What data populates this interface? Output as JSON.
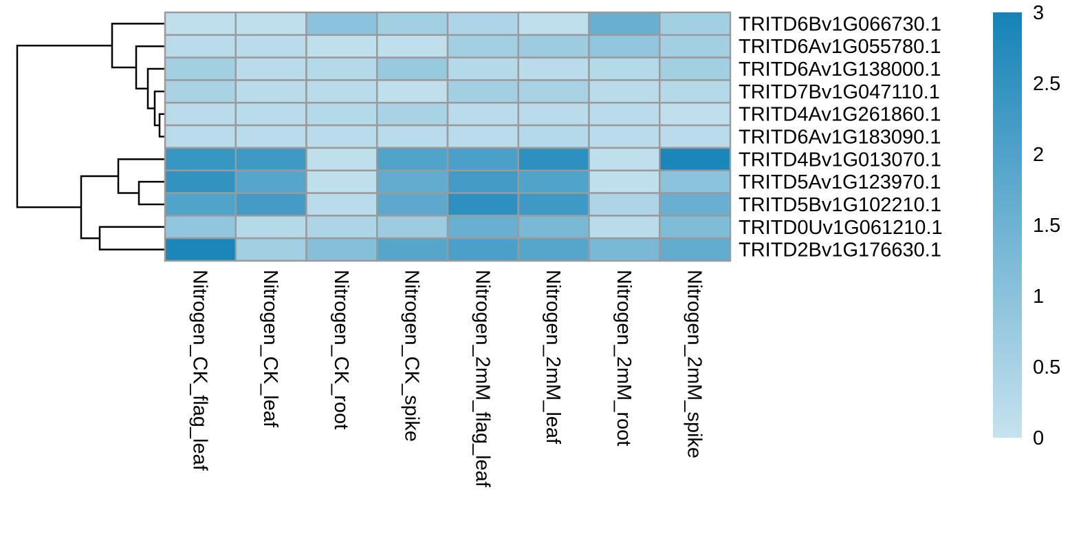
{
  "chart_data": {
    "type": "heatmap",
    "columns": [
      "Nitrogen_CK_flag_leaf",
      "Nitrogen_CK_leaf",
      "Nitrogen_CK_root",
      "Nitrogen_CK_spike",
      "Nitrogen_2mM_flag_leaf",
      "Nitrogen_2mM_leaf",
      "Nitrogen_2mM_root",
      "Nitrogen_2mM_spike"
    ],
    "rows": [
      "TRITD6Bv1G066730.1",
      "TRITD6Av1G055780.1",
      "TRITD6Av1G138000.1",
      "TRITD7Bv1G047110.1",
      "TRITD4Av1G261860.1",
      "TRITD6Av1G183090.1",
      "TRITD4Bv1G013070.1",
      "TRITD5Av1G123970.1",
      "TRITD5Bv1G102210.1",
      "TRITD0Uv1G061210.1",
      "TRITD2Bv1G176630.1"
    ],
    "values": [
      [
        0.1,
        0.1,
        1.0,
        0.6,
        0.4,
        0.1,
        1.6,
        0.6
      ],
      [
        0.2,
        0.2,
        0.1,
        0.1,
        0.6,
        0.7,
        0.9,
        0.6
      ],
      [
        0.6,
        0.2,
        0.3,
        0.8,
        0.3,
        0.2,
        0.3,
        0.6
      ],
      [
        0.5,
        0.2,
        0.2,
        0.1,
        0.6,
        0.5,
        0.2,
        0.3
      ],
      [
        0.2,
        0.2,
        0.3,
        0.5,
        0.2,
        0.2,
        0.2,
        0.1
      ],
      [
        0.2,
        0.2,
        0.2,
        0.2,
        0.2,
        0.3,
        0.2,
        0.2
      ],
      [
        2.4,
        2.3,
        0.1,
        2.0,
        2.1,
        2.6,
        0.1,
        2.9
      ],
      [
        2.5,
        1.9,
        0.1,
        1.7,
        2.2,
        2.0,
        0.1,
        1.0
      ],
      [
        2.0,
        2.2,
        0.2,
        1.8,
        2.6,
        2.3,
        0.4,
        1.6
      ],
      [
        0.9,
        0.3,
        0.4,
        0.7,
        1.6,
        1.3,
        0.2,
        1.2
      ],
      [
        2.9,
        0.6,
        1.1,
        1.9,
        2.1,
        1.9,
        1.3,
        1.7
      ]
    ],
    "colorbar": {
      "min": 0,
      "max": 3,
      "ticks": [
        "3",
        "2.5",
        "2",
        "1.5",
        "1",
        "0.5",
        "0"
      ],
      "tick_values": [
        3,
        2.5,
        2,
        1.5,
        1,
        0.5,
        0
      ],
      "low_color": "#c6e2ee",
      "high_color": "#1583b7"
    },
    "grid_color": "#9a9a9a",
    "dendrogram": {
      "side": "left",
      "order": [
        "TRITD6Bv1G066730.1",
        "TRITD6Av1G055780.1",
        "TRITD6Av1G138000.1",
        "TRITD7Bv1G047110.1",
        "TRITD4Av1G261860.1",
        "TRITD6Av1G183090.1",
        "TRITD4Bv1G013070.1",
        "TRITD5Av1G123970.1",
        "TRITD5Bv1G102210.1",
        "TRITD0Uv1G061210.1",
        "TRITD2Bv1G176630.1"
      ]
    }
  }
}
